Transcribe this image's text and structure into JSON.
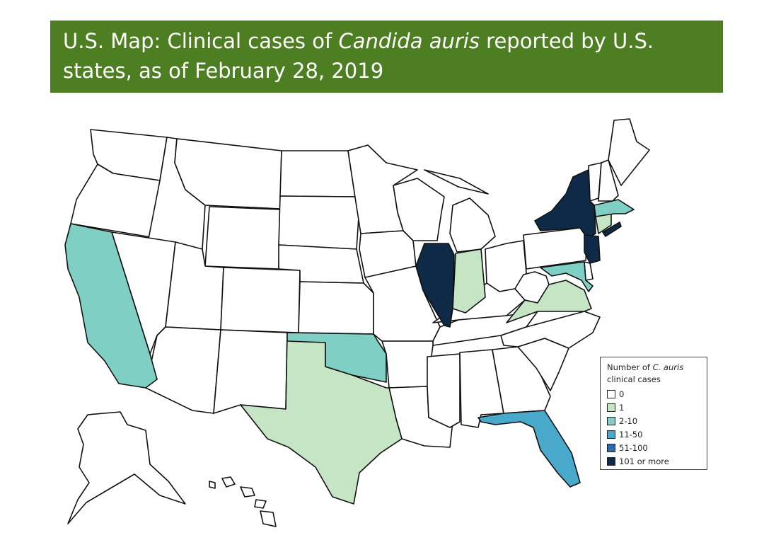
{
  "title": {
    "prefix": "U.S. Map: Clinical cases of ",
    "italic": "Candida auris",
    "suffix_line1": " reported by U.S.",
    "line2": "states, as of February 28, 2019"
  },
  "legend": {
    "title_part1": "Number of ",
    "title_italic": "C. auris",
    "title_part2": "clinical cases",
    "items": [
      {
        "label": "0",
        "color": "#ffffff"
      },
      {
        "label": "1",
        "color": "#c6e5c4"
      },
      {
        "label": "2-10",
        "color": "#7fcfc4"
      },
      {
        "label": "11-50",
        "color": "#48a9cb"
      },
      {
        "label": "51-100",
        "color": "#2a6cb0"
      },
      {
        "label": "101 or more",
        "color": "#0e2a47"
      }
    ]
  },
  "states_highlighted": {
    "illinois": "101 or more",
    "new_york": "101 or more",
    "new_jersey": "101 or more",
    "florida": "11-50",
    "california": "2-10",
    "oklahoma": "2-10",
    "massachusetts": "2-10",
    "maryland": "2-10",
    "texas": "1",
    "indiana": "1",
    "virginia": "1",
    "connecticut": "1"
  }
}
